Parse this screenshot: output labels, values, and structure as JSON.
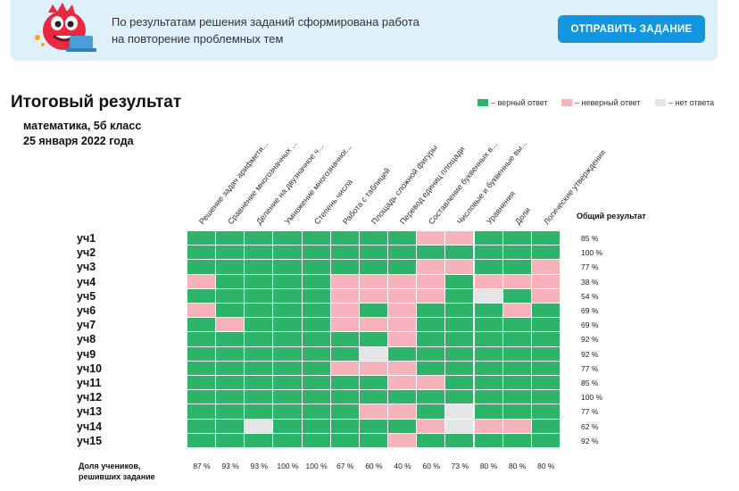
{
  "banner": {
    "mascot_icon": "dino-mascot-with-laptop",
    "text_line1": "По результатам решения заданий сформирована работа",
    "text_line2": "на повторение проблемных тем",
    "send_button": "ОТПРАВИТЬ ЗАДАНИЕ"
  },
  "title": "Итоговый результат",
  "subject": "математика, 5б класс",
  "date": "25 января 2022 года",
  "legend": [
    {
      "label": "– верный ответ",
      "color": "#2eb36a"
    },
    {
      "label": "– неверный ответ",
      "color": "#f6b3bc"
    },
    {
      "label": "– нет ответа",
      "color": "#e4e6e6"
    }
  ],
  "colors": {
    "ok": "#2eb36a",
    "bad": "#f6b3bc",
    "none": "#e4e6e6",
    "button": "#1296df",
    "banner": "#ddf0fb"
  },
  "columns": [
    "Решение задач арифмети...",
    "Сравнение многозначных ...",
    "Деление на двузначное ч...",
    "Умножение многозначног...",
    "Степень числа",
    "Работа с таблицей",
    "Площадь сложной фигуры",
    "Перевод единиц площади",
    "Составление буквенных в...",
    "Числовые и буквенные вы...",
    "Уравнения",
    "Доли",
    "Логические утверждения"
  ],
  "total_header": "Общий результат",
  "students": [
    {
      "name": "уч1",
      "total": "85 %",
      "cells": [
        "ok",
        "ok",
        "ok",
        "ok",
        "ok",
        "ok",
        "ok",
        "ok",
        "bad",
        "bad",
        "ok",
        "ok",
        "ok"
      ]
    },
    {
      "name": "уч2",
      "total": "100 %",
      "cells": [
        "ok",
        "ok",
        "ok",
        "ok",
        "ok",
        "ok",
        "ok",
        "ok",
        "ok",
        "ok",
        "ok",
        "ok",
        "ok"
      ]
    },
    {
      "name": "уч3",
      "total": "77 %",
      "cells": [
        "ok",
        "ok",
        "ok",
        "ok",
        "ok",
        "ok",
        "ok",
        "ok",
        "bad",
        "bad",
        "ok",
        "ok",
        "bad"
      ]
    },
    {
      "name": "уч4",
      "total": "38 %",
      "cells": [
        "bad",
        "ok",
        "ok",
        "ok",
        "ok",
        "bad",
        "bad",
        "bad",
        "bad",
        "ok",
        "bad",
        "bad",
        "bad"
      ]
    },
    {
      "name": "уч5",
      "total": "54 %",
      "cells": [
        "ok",
        "ok",
        "ok",
        "ok",
        "ok",
        "bad",
        "bad",
        "bad",
        "bad",
        "ok",
        "none",
        "ok",
        "bad"
      ]
    },
    {
      "name": "уч6",
      "total": "69 %",
      "cells": [
        "bad",
        "ok",
        "ok",
        "ok",
        "ok",
        "bad",
        "ok",
        "bad",
        "ok",
        "ok",
        "ok",
        "bad",
        "ok"
      ]
    },
    {
      "name": "уч7",
      "total": "69 %",
      "cells": [
        "ok",
        "bad",
        "ok",
        "ok",
        "ok",
        "bad",
        "bad",
        "bad",
        "ok",
        "ok",
        "ok",
        "ok",
        "ok"
      ]
    },
    {
      "name": "уч8",
      "total": "92 %",
      "cells": [
        "ok",
        "ok",
        "ok",
        "ok",
        "ok",
        "ok",
        "ok",
        "bad",
        "ok",
        "ok",
        "ok",
        "ok",
        "ok"
      ]
    },
    {
      "name": "уч9",
      "total": "92 %",
      "cells": [
        "ok",
        "ok",
        "ok",
        "ok",
        "ok",
        "ok",
        "none",
        "ok",
        "ok",
        "ok",
        "ok",
        "ok",
        "ok"
      ]
    },
    {
      "name": "уч10",
      "total": "77 %",
      "cells": [
        "ok",
        "ok",
        "ok",
        "ok",
        "ok",
        "bad",
        "bad",
        "bad",
        "ok",
        "ok",
        "ok",
        "ok",
        "ok"
      ]
    },
    {
      "name": "уч11",
      "total": "85 %",
      "cells": [
        "ok",
        "ok",
        "ok",
        "ok",
        "ok",
        "ok",
        "ok",
        "bad",
        "bad",
        "ok",
        "ok",
        "ok",
        "ok"
      ]
    },
    {
      "name": "уч12",
      "total": "100 %",
      "cells": [
        "ok",
        "ok",
        "ok",
        "ok",
        "ok",
        "ok",
        "ok",
        "ok",
        "ok",
        "ok",
        "ok",
        "ok",
        "ok"
      ]
    },
    {
      "name": "уч13",
      "total": "77 %",
      "cells": [
        "ok",
        "ok",
        "ok",
        "ok",
        "ok",
        "ok",
        "bad",
        "bad",
        "ok",
        "none",
        "ok",
        "ok",
        "ok"
      ]
    },
    {
      "name": "уч14",
      "total": "62 %",
      "cells": [
        "ok",
        "ok",
        "none",
        "ok",
        "ok",
        "ok",
        "ok",
        "ok",
        "bad",
        "none",
        "bad",
        "bad",
        "ok"
      ]
    },
    {
      "name": "уч15",
      "total": "92 %",
      "cells": [
        "ok",
        "ok",
        "ok",
        "ok",
        "ok",
        "ok",
        "ok",
        "bad",
        "ok",
        "ok",
        "ok",
        "ok",
        "ok"
      ]
    }
  ],
  "footer_label_line1": "Доля учеников,",
  "footer_label_line2": "решивших задание",
  "column_percent": [
    "87 %",
    "93 %",
    "93 %",
    "100 %",
    "100 %",
    "67 %",
    "60 %",
    "40 %",
    "60 %",
    "73 %",
    "80 %",
    "80 %",
    "80 %"
  ]
}
